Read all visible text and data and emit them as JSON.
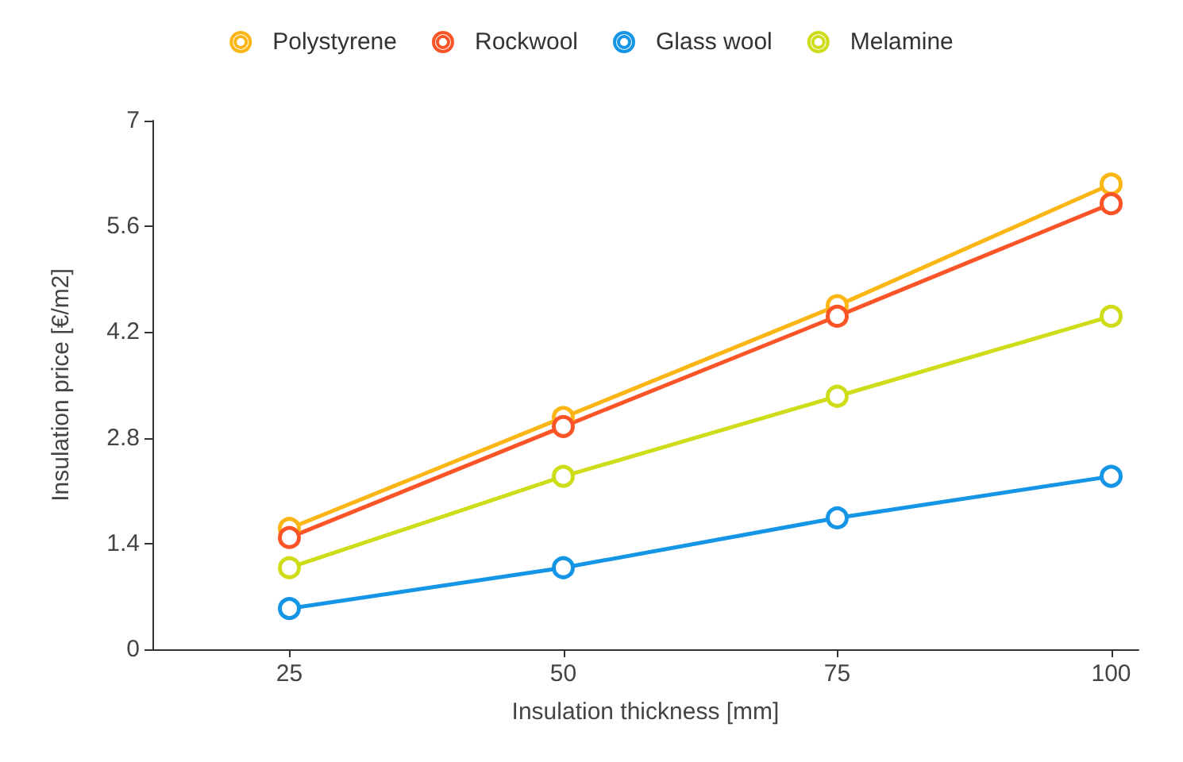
{
  "chart_data": {
    "type": "line",
    "xlabel": "Insulation thickness [mm]",
    "ylabel": "Insulation price [€/m2]",
    "x": [
      25,
      50,
      75,
      100
    ],
    "series": [
      {
        "name": "Polystyrene",
        "color": "#fbb615",
        "values": [
          1.6,
          3.07,
          4.55,
          6.16
        ]
      },
      {
        "name": "Rockwool",
        "color": "#fa5427",
        "values": [
          1.48,
          2.95,
          4.41,
          5.9
        ]
      },
      {
        "name": "Glass wool",
        "color": "#1595e6",
        "values": [
          0.54,
          1.08,
          1.74,
          2.29
        ]
      },
      {
        "name": "Melamine",
        "color": "#cfdc1a",
        "values": [
          1.08,
          2.29,
          3.35,
          4.41
        ]
      }
    ],
    "xlim": [
      12.5,
      102.5
    ],
    "xticks": [
      25,
      50,
      75,
      100
    ],
    "ylim": [
      0,
      7
    ],
    "yticks": [
      0,
      1.4,
      2.8,
      4.2,
      5.6,
      7
    ],
    "grid": false,
    "legend": "top",
    "marker": "circle",
    "line_style": "solid"
  }
}
